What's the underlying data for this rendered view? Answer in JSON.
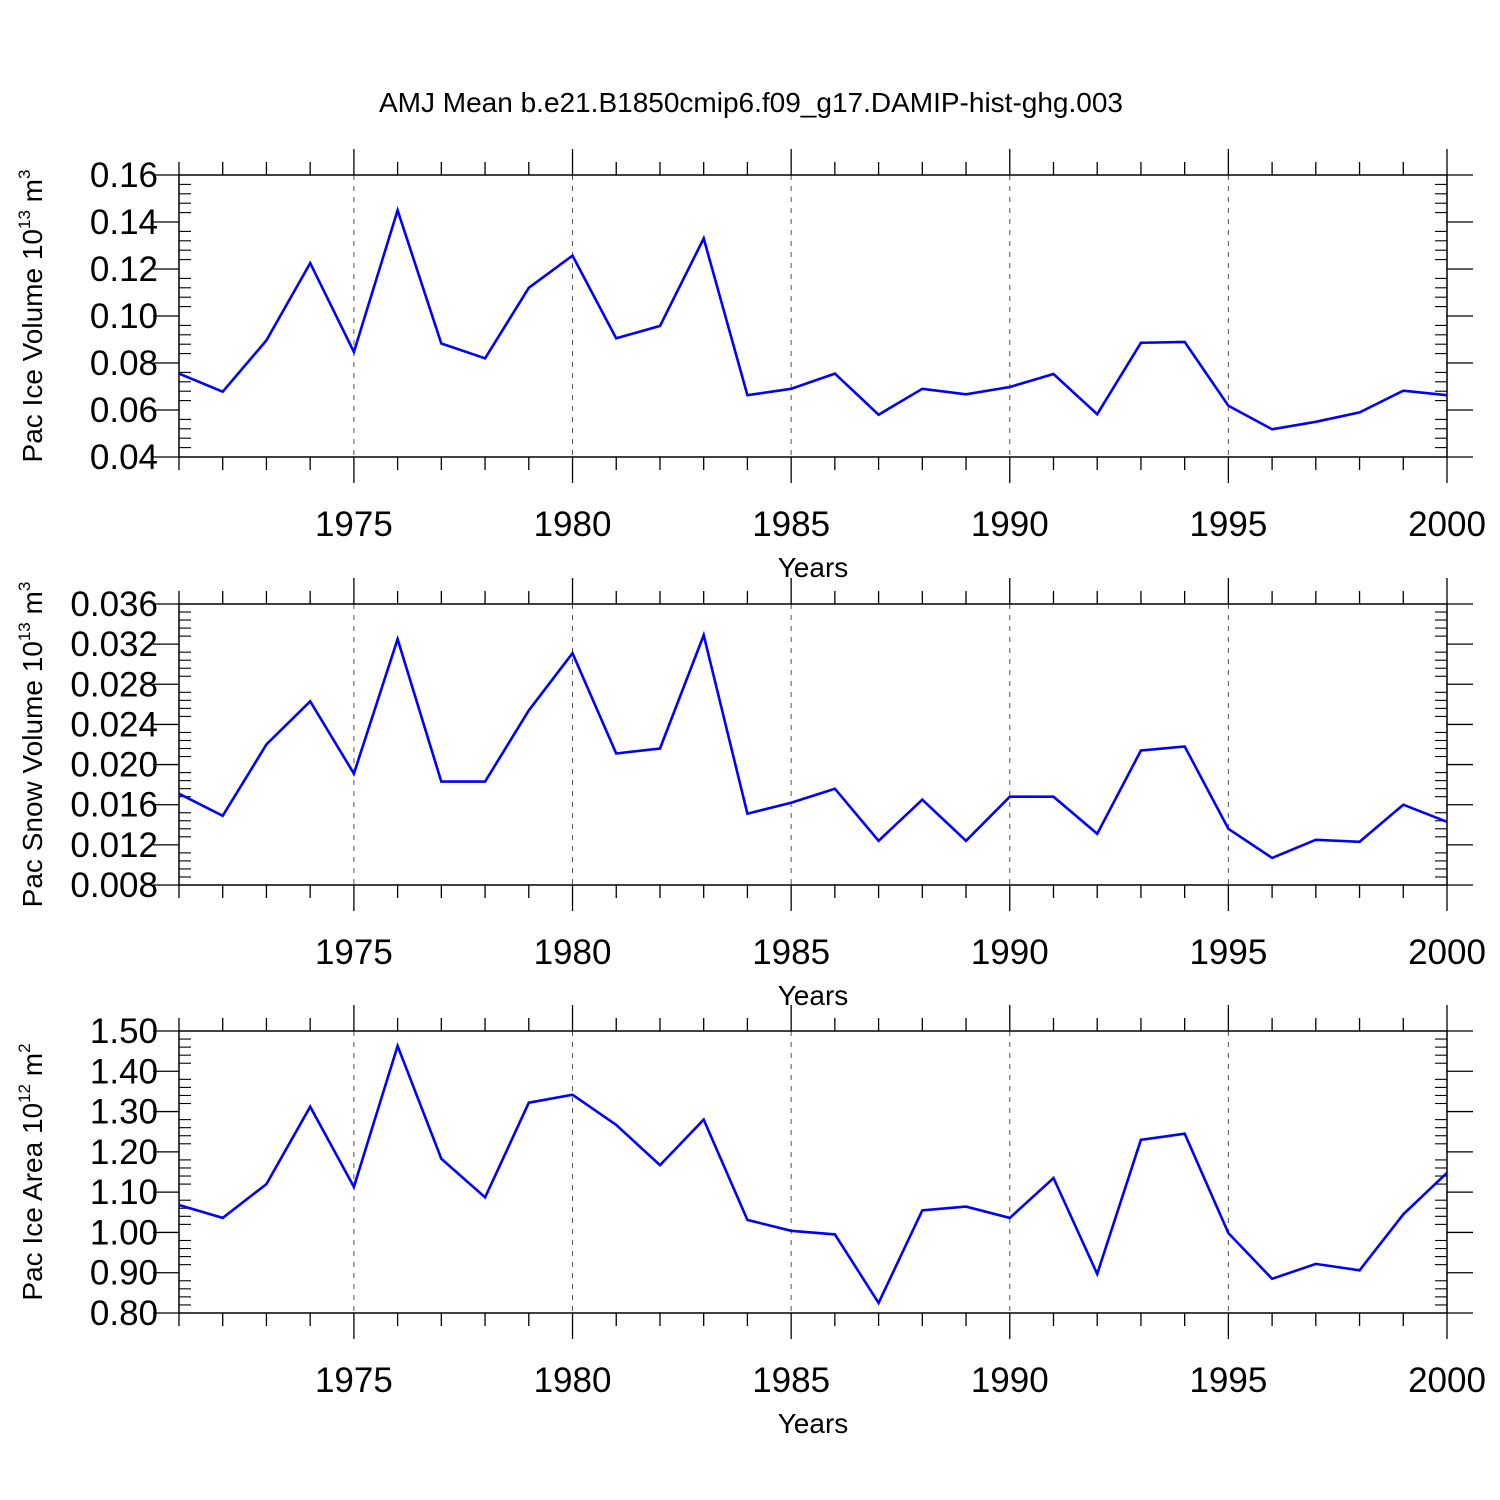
{
  "figure_title": "AMJ Mean b.e21.B1850cmip6.f09_g17.DAMIP-hist-ghg.003",
  "colors": {
    "series": "#0000ff",
    "axis": "#000000",
    "grid": "#555555"
  },
  "chart_data": [
    {
      "type": "line",
      "ylabel": {
        "text": "Pac Ice Volume 10",
        "exp": "13",
        "unit": " m",
        "unit_exp": "3"
      },
      "xlabel": "Years",
      "xlim": [
        1971,
        2000
      ],
      "ylim": [
        0.04,
        0.16
      ],
      "x_ticks": [
        1975,
        1980,
        1985,
        1990,
        1995,
        2000
      ],
      "y_ticks": [
        0.04,
        0.06,
        0.08,
        0.1,
        0.12,
        0.14,
        0.16
      ],
      "y_tick_labels": [
        "0.04",
        "0.06",
        "0.08",
        "0.10",
        "0.12",
        "0.14",
        "0.16"
      ],
      "x_grid": "dashed at major ticks",
      "x": [
        1971,
        1972,
        1973,
        1974,
        1975,
        1976,
        1977,
        1978,
        1979,
        1980,
        1981,
        1982,
        1983,
        1984,
        1985,
        1986,
        1987,
        1988,
        1989,
        1990,
        1991,
        1992,
        1993,
        1994,
        1995,
        1996,
        1997,
        1998,
        1999,
        2000
      ],
      "y": [
        0.0755,
        0.0678,
        0.0896,
        0.1225,
        0.0847,
        0.145,
        0.0883,
        0.082,
        0.112,
        0.1257,
        0.0905,
        0.0958,
        0.133,
        0.0663,
        0.069,
        0.0755,
        0.058,
        0.069,
        0.0667,
        0.0698,
        0.0753,
        0.0582,
        0.0886,
        0.089,
        0.0618,
        0.0518,
        0.055,
        0.059,
        0.0682,
        0.0663
      ]
    },
    {
      "type": "line",
      "ylabel": {
        "text": "Pac Snow Volume 10",
        "exp": "13",
        "unit": " m",
        "unit_exp": "3"
      },
      "xlabel": "Years",
      "xlim": [
        1971,
        2000
      ],
      "ylim": [
        0.008,
        0.036
      ],
      "x_ticks": [
        1975,
        1980,
        1985,
        1990,
        1995,
        2000
      ],
      "y_ticks": [
        0.008,
        0.012,
        0.016,
        0.02,
        0.024,
        0.028,
        0.032,
        0.036
      ],
      "y_tick_labels": [
        "0.008",
        "0.012",
        "0.016",
        "0.020",
        "0.024",
        "0.028",
        "0.032",
        "0.036"
      ],
      "x_grid": "dashed at major ticks",
      "x": [
        1971,
        1972,
        1973,
        1974,
        1975,
        1976,
        1977,
        1978,
        1979,
        1980,
        1981,
        1982,
        1983,
        1984,
        1985,
        1986,
        1987,
        1988,
        1989,
        1990,
        1991,
        1992,
        1993,
        1994,
        1995,
        1996,
        1997,
        1998,
        1999,
        2000
      ],
      "y": [
        0.0171,
        0.0149,
        0.022,
        0.0263,
        0.0191,
        0.0325,
        0.0183,
        0.0183,
        0.0254,
        0.0311,
        0.0211,
        0.0216,
        0.0329,
        0.0151,
        0.0162,
        0.0176,
        0.0124,
        0.0165,
        0.0124,
        0.0168,
        0.0168,
        0.0131,
        0.0214,
        0.0218,
        0.0136,
        0.0107,
        0.0125,
        0.0123,
        0.016,
        0.0143
      ]
    },
    {
      "type": "line",
      "ylabel": {
        "text": "Pac Ice Area 10",
        "exp": "12",
        "unit": " m",
        "unit_exp": "2"
      },
      "xlabel": "Years",
      "xlim": [
        1971,
        2000
      ],
      "ylim": [
        0.8,
        1.5
      ],
      "x_ticks": [
        1975,
        1980,
        1985,
        1990,
        1995,
        2000
      ],
      "y_ticks": [
        0.8,
        0.9,
        1.0,
        1.1,
        1.2,
        1.3,
        1.4,
        1.5
      ],
      "y_tick_labels": [
        "0.80",
        "0.90",
        "1.00",
        "1.10",
        "1.20",
        "1.30",
        "1.40",
        "1.50"
      ],
      "x_grid": "dashed at major ticks",
      "x": [
        1971,
        1972,
        1973,
        1974,
        1975,
        1976,
        1977,
        1978,
        1979,
        1980,
        1981,
        1982,
        1983,
        1984,
        1985,
        1986,
        1987,
        1988,
        1989,
        1990,
        1991,
        1992,
        1993,
        1994,
        1995,
        1996,
        1997,
        1998,
        1999,
        2000
      ],
      "y": [
        1.068,
        1.036,
        1.12,
        1.312,
        1.113,
        1.463,
        1.183,
        1.087,
        1.322,
        1.342,
        1.267,
        1.167,
        1.28,
        1.031,
        1.004,
        0.995,
        0.825,
        1.055,
        1.064,
        1.036,
        1.135,
        0.897,
        1.23,
        1.245,
        0.998,
        0.885,
        0.922,
        0.906,
        1.045,
        1.148
      ]
    }
  ]
}
